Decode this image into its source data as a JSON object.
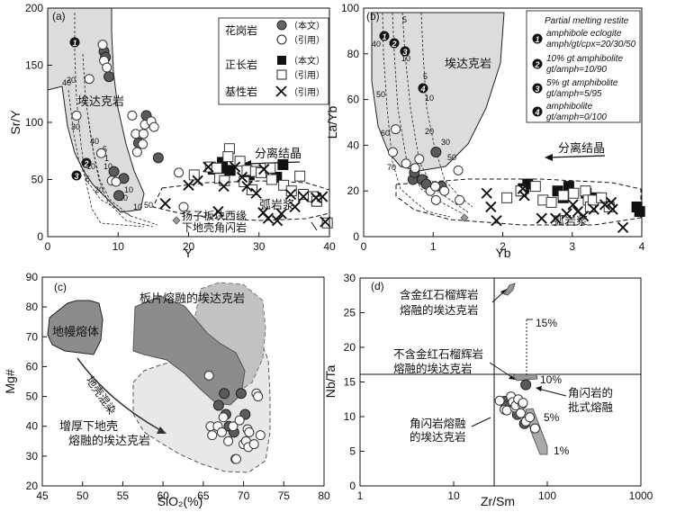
{
  "panel_a": {
    "label": "(a)",
    "x_label": "Y",
    "y_label": "Sr/Y",
    "x_ticks": [
      "0",
      "10",
      "20",
      "30",
      "40"
    ],
    "y_ticks": [
      "0",
      "50",
      "100",
      "150",
      "200"
    ],
    "adakite_label": "埃达克岩",
    "fractional_label": "分离结晶",
    "arc_label": "弧岩浆",
    "amphibolite_label_1": "扬子板块西缘",
    "amphibolite_label_2": "下地壳角闪岩",
    "curve_labels": {
      "one": "1",
      "two": "2",
      "three": "3"
    },
    "curve_pcts": [
      "40",
      "20",
      "30",
      "40",
      "10",
      "5",
      "1",
      "5",
      "10",
      "20",
      "10",
      "20",
      "10",
      "50"
    ]
  },
  "panel_b": {
    "label": "(b)",
    "x_label": "Yb",
    "y_label": "La/Yb",
    "x_ticks": [
      "0",
      "1",
      "2",
      "3",
      "4"
    ],
    "y_ticks": [
      "0",
      "20",
      "40",
      "60",
      "80",
      "100"
    ],
    "adakite_label": "埃达克岩",
    "fractional_label": "分离结晶",
    "arc_label": "弧岩浆",
    "curve_labels": {
      "one": "1",
      "two": "2",
      "three": "3",
      "four": "4"
    },
    "curve_pcts": [
      "5",
      "40",
      "50",
      "10",
      "5",
      "10",
      "20",
      "30",
      "50",
      "60",
      "70",
      "50"
    ]
  },
  "legend_a": {
    "granite": "花岗岩",
    "orthoclase": "正长岩",
    "basic": "基性岩",
    "this_study": "（本文）",
    "cited": "（引用）"
  },
  "legend_b": {
    "title": "Partial melting restite",
    "items": [
      {
        "num": "1",
        "l1": "amphibole eclogite",
        "l2": "amph/gt/cpx=20/30/50"
      },
      {
        "num": "2",
        "l1": "10% gt amphibolite",
        "l2": "gt/amph=10/90"
      },
      {
        "num": "3",
        "l1": "5% gt amphibolite",
        "l2": "gt/amph=5/95"
      },
      {
        "num": "4",
        "l1": "amphibolite",
        "l2": "gt/amph=0/100"
      }
    ]
  },
  "panel_c": {
    "label": "(c)",
    "x_label": "SiO₂(%)",
    "y_label": "Mg#",
    "x_ticks": [
      "45",
      "50",
      "55",
      "60",
      "65",
      "70",
      "75",
      "80"
    ],
    "y_ticks": [
      "20",
      "30",
      "40",
      "50",
      "60",
      "70",
      "80",
      "90"
    ],
    "mantle_label": "地幔熔体",
    "slab_label": "板片熔融的埃达克岩",
    "crust_label": "地壳混染",
    "lower_crust_1": "增厚下地壳",
    "lower_crust_2": "熔融的埃达克岩"
  },
  "panel_d": {
    "label": "(d)",
    "x_label": "Zr/Sm",
    "y_label": "Nb/Ta",
    "x_ticks": [
      "1",
      "10",
      "100",
      "1000"
    ],
    "y_ticks": [
      "0",
      "5",
      "10",
      "15",
      "20",
      "25",
      "30"
    ],
    "rutile_1": "含金红石榴辉岩",
    "rutile_2": "熔融的埃达克岩",
    "norutile_1": "不含金红石榴辉岩",
    "norutile_2": "熔融的埃达克岩",
    "amph_batch_1": "角闪岩的",
    "amph_batch_2": "批式熔融",
    "amph_adakite_1": "角闪岩熔融",
    "amph_adakite_2": "的埃达克岩",
    "pct15": "15%",
    "pct10": "10%",
    "pct5": "5%",
    "pct1": "1%"
  },
  "chart_data": [
    {
      "type": "scatter",
      "panel": "a",
      "xlabel": "Y",
      "ylabel": "Sr/Y",
      "xlim": [
        0,
        40
      ],
      "ylim": [
        0,
        200
      ],
      "series": [
        {
          "name": "granite_this_study",
          "points": [
            [
              8.0,
              162
            ],
            [
              8.2,
              157
            ],
            [
              8.7,
              140
            ],
            [
              9.4,
              57
            ],
            [
              10.1,
              36
            ],
            [
              10.8,
              51
            ],
            [
              12.9,
              82
            ],
            [
              14.0,
              106
            ],
            [
              15.7,
              69
            ]
          ]
        },
        {
          "name": "granite_cited",
          "points": [
            [
              4.1,
              106
            ],
            [
              5.9,
              138
            ],
            [
              7.6,
              73
            ],
            [
              7.8,
              168
            ],
            [
              8.0,
              154
            ],
            [
              8.4,
              148
            ],
            [
              9.1,
              49
            ],
            [
              9.7,
              48
            ],
            [
              12.0,
              106
            ],
            [
              12.5,
              90
            ],
            [
              12.7,
              74
            ],
            [
              13.5,
              81
            ],
            [
              13.6,
              90
            ],
            [
              13.8,
              98
            ],
            [
              14.7,
              101
            ],
            [
              15.1,
              96
            ],
            [
              18.6,
              56
            ],
            [
              19.3,
              26
            ]
          ]
        },
        {
          "name": "orthoclase_this_study",
          "points": [
            [
              23.5,
              59
            ],
            [
              24.8,
              65
            ],
            [
              25.1,
              56
            ],
            [
              25.9,
              58
            ],
            [
              28.6,
              54
            ],
            [
              32.5,
              52
            ],
            [
              33.4,
              63
            ],
            [
              37.7,
              35
            ],
            [
              38.2,
              31
            ]
          ]
        },
        {
          "name": "orthoclase_cited",
          "points": [
            [
              20.8,
              54
            ],
            [
              23.1,
              61
            ],
            [
              24.0,
              60
            ],
            [
              24.4,
              51
            ],
            [
              25.1,
              49
            ],
            [
              25.8,
              77
            ],
            [
              27.3,
              66
            ],
            [
              27.9,
              48
            ],
            [
              28.3,
              58
            ],
            [
              29.0,
              41
            ],
            [
              29.5,
              57
            ],
            [
              30.3,
              56
            ],
            [
              31.8,
              50
            ],
            [
              33.5,
              45
            ],
            [
              34.6,
              40
            ],
            [
              35.8,
              53
            ],
            [
              36.3,
              37
            ],
            [
              37.7,
              35
            ],
            [
              38.2,
              31
            ],
            [
              39.7,
              12
            ],
            [
              25.6,
              70
            ],
            [
              31.6,
              60
            ]
          ]
        },
        {
          "name": "basic_cited",
          "points": [
            [
              16.7,
              29
            ],
            [
              20.0,
              45
            ],
            [
              21.3,
              49
            ],
            [
              22.8,
              61
            ],
            [
              24.2,
              22
            ],
            [
              25.0,
              44
            ],
            [
              26.6,
              61
            ],
            [
              27.6,
              52
            ],
            [
              28.3,
              44
            ],
            [
              29.6,
              38
            ],
            [
              30.6,
              21
            ],
            [
              31.3,
              16
            ],
            [
              32.6,
              14
            ],
            [
              33.2,
              20
            ],
            [
              34.5,
              37
            ],
            [
              35.1,
              26
            ],
            [
              36.3,
              35
            ],
            [
              38.1,
              34
            ],
            [
              39.0,
              35
            ],
            [
              39.4,
              13
            ],
            [
              30.7,
              59
            ]
          ]
        },
        {
          "name": "amphibolite_lower_crust",
          "points": [
            [
              18.0,
              11
            ]
          ]
        }
      ]
    },
    {
      "type": "scatter",
      "panel": "b",
      "xlabel": "Yb",
      "ylabel": "La/Yb",
      "xlim": [
        0,
        4
      ],
      "ylim": [
        0,
        100
      ],
      "series": [
        {
          "name": "granite_this_study",
          "points": [
            [
              0.71,
              25
            ],
            [
              0.73,
              28
            ],
            [
              0.84,
              25
            ],
            [
              0.9,
              23
            ],
            [
              1.04,
              37
            ],
            [
              1.12,
              22
            ]
          ]
        },
        {
          "name": "granite_cited",
          "points": [
            [
              0.42,
              37
            ],
            [
              0.46,
              47
            ],
            [
              0.61,
              32
            ],
            [
              0.74,
              30
            ],
            [
              0.8,
              34
            ],
            [
              0.96,
              20
            ],
            [
              1.03,
              22
            ],
            [
              1.04,
              16
            ],
            [
              1.16,
              20
            ],
            [
              1.36,
              29
            ],
            [
              1.38,
              16
            ]
          ]
        },
        {
          "name": "orthoclase_this_study",
          "points": [
            [
              2.27,
              20
            ],
            [
              2.3,
              21
            ],
            [
              2.36,
              23
            ],
            [
              2.79,
              20
            ],
            [
              2.87,
              17
            ],
            [
              2.95,
              22
            ],
            [
              3.2,
              19
            ],
            [
              3.35,
              17
            ],
            [
              3.93,
              13
            ],
            [
              3.97,
              11
            ]
          ]
        },
        {
          "name": "orthoclase_cited",
          "points": [
            [
              2.06,
              17
            ],
            [
              2.26,
              20
            ],
            [
              2.47,
              22
            ],
            [
              2.58,
              16
            ],
            [
              2.7,
              15
            ],
            [
              2.87,
              18
            ],
            [
              3.02,
              19
            ],
            [
              3.19,
              20
            ],
            [
              3.23,
              16
            ],
            [
              3.26,
              13
            ],
            [
              3.3,
              16
            ],
            [
              3.42,
              17
            ],
            [
              3.53,
              13
            ]
          ]
        },
        {
          "name": "basic_cited",
          "points": [
            [
              1.77,
              19
            ],
            [
              1.83,
              13
            ],
            [
              1.91,
              7
            ],
            [
              2.29,
              21
            ],
            [
              2.31,
              18
            ],
            [
              2.56,
              8
            ],
            [
              2.76,
              8
            ],
            [
              2.92,
              10
            ],
            [
              3.01,
              14
            ],
            [
              3.08,
              11
            ],
            [
              3.16,
              9
            ],
            [
              3.31,
              12
            ],
            [
              3.47,
              14
            ],
            [
              3.56,
              15
            ],
            [
              3.58,
              12
            ],
            [
              3.73,
              4
            ]
          ]
        },
        {
          "name": "amphibolite_lower_crust",
          "points": [
            [
              1.6,
              7
            ]
          ]
        }
      ]
    },
    {
      "type": "scatter",
      "panel": "c",
      "xlabel": "SiO2(%)",
      "ylabel": "Mg#",
      "xlim": [
        45,
        80
      ],
      "ylim": [
        20,
        90
      ],
      "series": [
        {
          "name": "this_study",
          "points": [
            [
              66.9,
              47
            ],
            [
              67.6,
              51
            ],
            [
              67.8,
              44
            ],
            [
              68.2,
              40
            ],
            [
              68.8,
              38
            ],
            [
              69.7,
              51
            ],
            [
              70.2,
              44
            ]
          ]
        },
        {
          "name": "cited",
          "points": [
            [
              65.7,
              57
            ],
            [
              65.9,
              40
            ],
            [
              66.1,
              37
            ],
            [
              66.8,
              40
            ],
            [
              67.3,
              38
            ],
            [
              67.5,
              43
            ],
            [
              68.1,
              35
            ],
            [
              68.7,
              40
            ],
            [
              69.0,
              29
            ],
            [
              69.1,
              29
            ],
            [
              69.5,
              42
            ],
            [
              70.0,
              34
            ],
            [
              70.3,
              35
            ],
            [
              70.5,
              39
            ],
            [
              70.6,
              33
            ],
            [
              70.7,
              38
            ],
            [
              71.3,
              34
            ],
            [
              71.6,
              51
            ],
            [
              71.8,
              50
            ],
            [
              72.1,
              37
            ]
          ]
        }
      ]
    },
    {
      "type": "scatter",
      "panel": "d",
      "xlabel": "Zr/Sm",
      "ylabel": "Nb/Ta",
      "xlim": [
        1,
        1000
      ],
      "xscale": "log",
      "ylim": [
        0,
        30
      ],
      "series": [
        {
          "name": "this_study",
          "points": [
            [
              35,
              12.2
            ],
            [
              36,
              11.5
            ],
            [
              48,
              10.3
            ],
            [
              57,
              9.0
            ],
            [
              59,
              14.6
            ]
          ]
        },
        {
          "name": "cited",
          "points": [
            [
              31,
              12.3
            ],
            [
              35,
              11.0
            ],
            [
              37,
              10.9
            ],
            [
              41,
              12.9
            ],
            [
              43,
              12.1
            ],
            [
              45,
              11.3
            ],
            [
              46,
              11.6
            ],
            [
              49,
              12.5
            ],
            [
              52,
              10.5
            ],
            [
              54,
              11.8
            ],
            [
              55,
              12.0
            ],
            [
              59,
              9.3
            ],
            [
              65,
              9.9
            ],
            [
              74,
              8.3
            ]
          ]
        }
      ]
    }
  ]
}
